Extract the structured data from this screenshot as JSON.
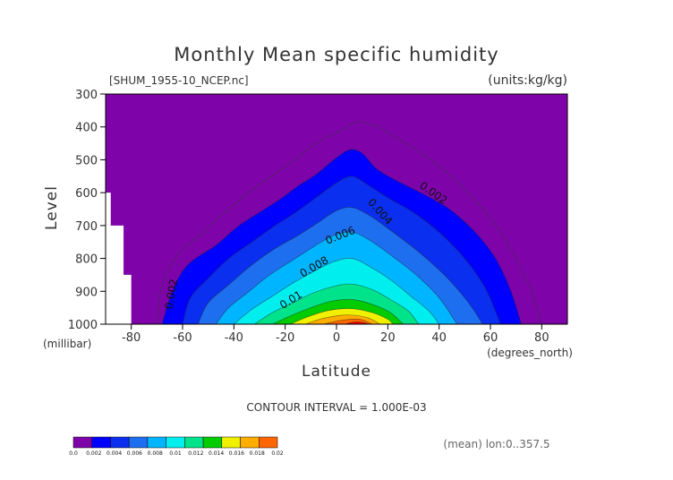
{
  "chart_data": {
    "type": "contour",
    "title": "Monthly Mean specific humidity",
    "file_label": "[SHUM_1955-10_NCEP.nc]",
    "units": "(units:kg/kg)",
    "xlabel": "Latitude",
    "ylabel": "Level",
    "x_units": "(degrees_north)",
    "y_units": "(millibar)",
    "xlim": [
      -90,
      90
    ],
    "ylim": [
      1000,
      300
    ],
    "x_ticks": [
      -80,
      -60,
      -40,
      -20,
      0,
      20,
      40,
      60,
      80
    ],
    "x_tick_labels": [
      "-80",
      "-60",
      "-40",
      "-20",
      "0",
      "20",
      "40",
      "60",
      "80"
    ],
    "y_ticks": [
      300,
      400,
      500,
      600,
      700,
      800,
      900,
      1000
    ],
    "y_tick_labels": [
      "300",
      "400",
      "500",
      "600",
      "700",
      "800",
      "900",
      "1000"
    ],
    "contour_interval_text": "CONTOUR INTERVAL = 1.000E-03",
    "footer_note": "(mean) lon:0..357.5",
    "contour_labels": [
      {
        "text": "0.002",
        "lat": -63,
        "level": 910,
        "angle": -80
      },
      {
        "text": "0.002",
        "lat": 37,
        "level": 610,
        "angle": 35
      },
      {
        "text": "0.004",
        "lat": 16,
        "level": 665,
        "angle": 48
      },
      {
        "text": "0.006",
        "lat": 2,
        "level": 740,
        "angle": -22
      },
      {
        "text": "0.008",
        "lat": -8,
        "level": 835,
        "angle": -30
      },
      {
        "text": "0.01",
        "lat": -17,
        "level": 935,
        "angle": -32
      }
    ],
    "colorbar": {
      "levels": [
        "0.0",
        "0.002",
        "0.004",
        "0.006",
        "0.008",
        "0.01",
        "0.012",
        "0.014",
        "0.016",
        "0.018",
        "0.02"
      ],
      "colors": [
        "#7e04aa",
        "#0000ff",
        "#0a2fee",
        "#1e6ef0",
        "#00b5ff",
        "#00eeee",
        "#00e38a",
        "#00cc00",
        "#f0f000",
        "#ffae00",
        "#ff6600",
        "#ff0000"
      ]
    },
    "fields": {
      "background_color": "#7e04aa",
      "missing_color": "#ffffff"
    }
  }
}
